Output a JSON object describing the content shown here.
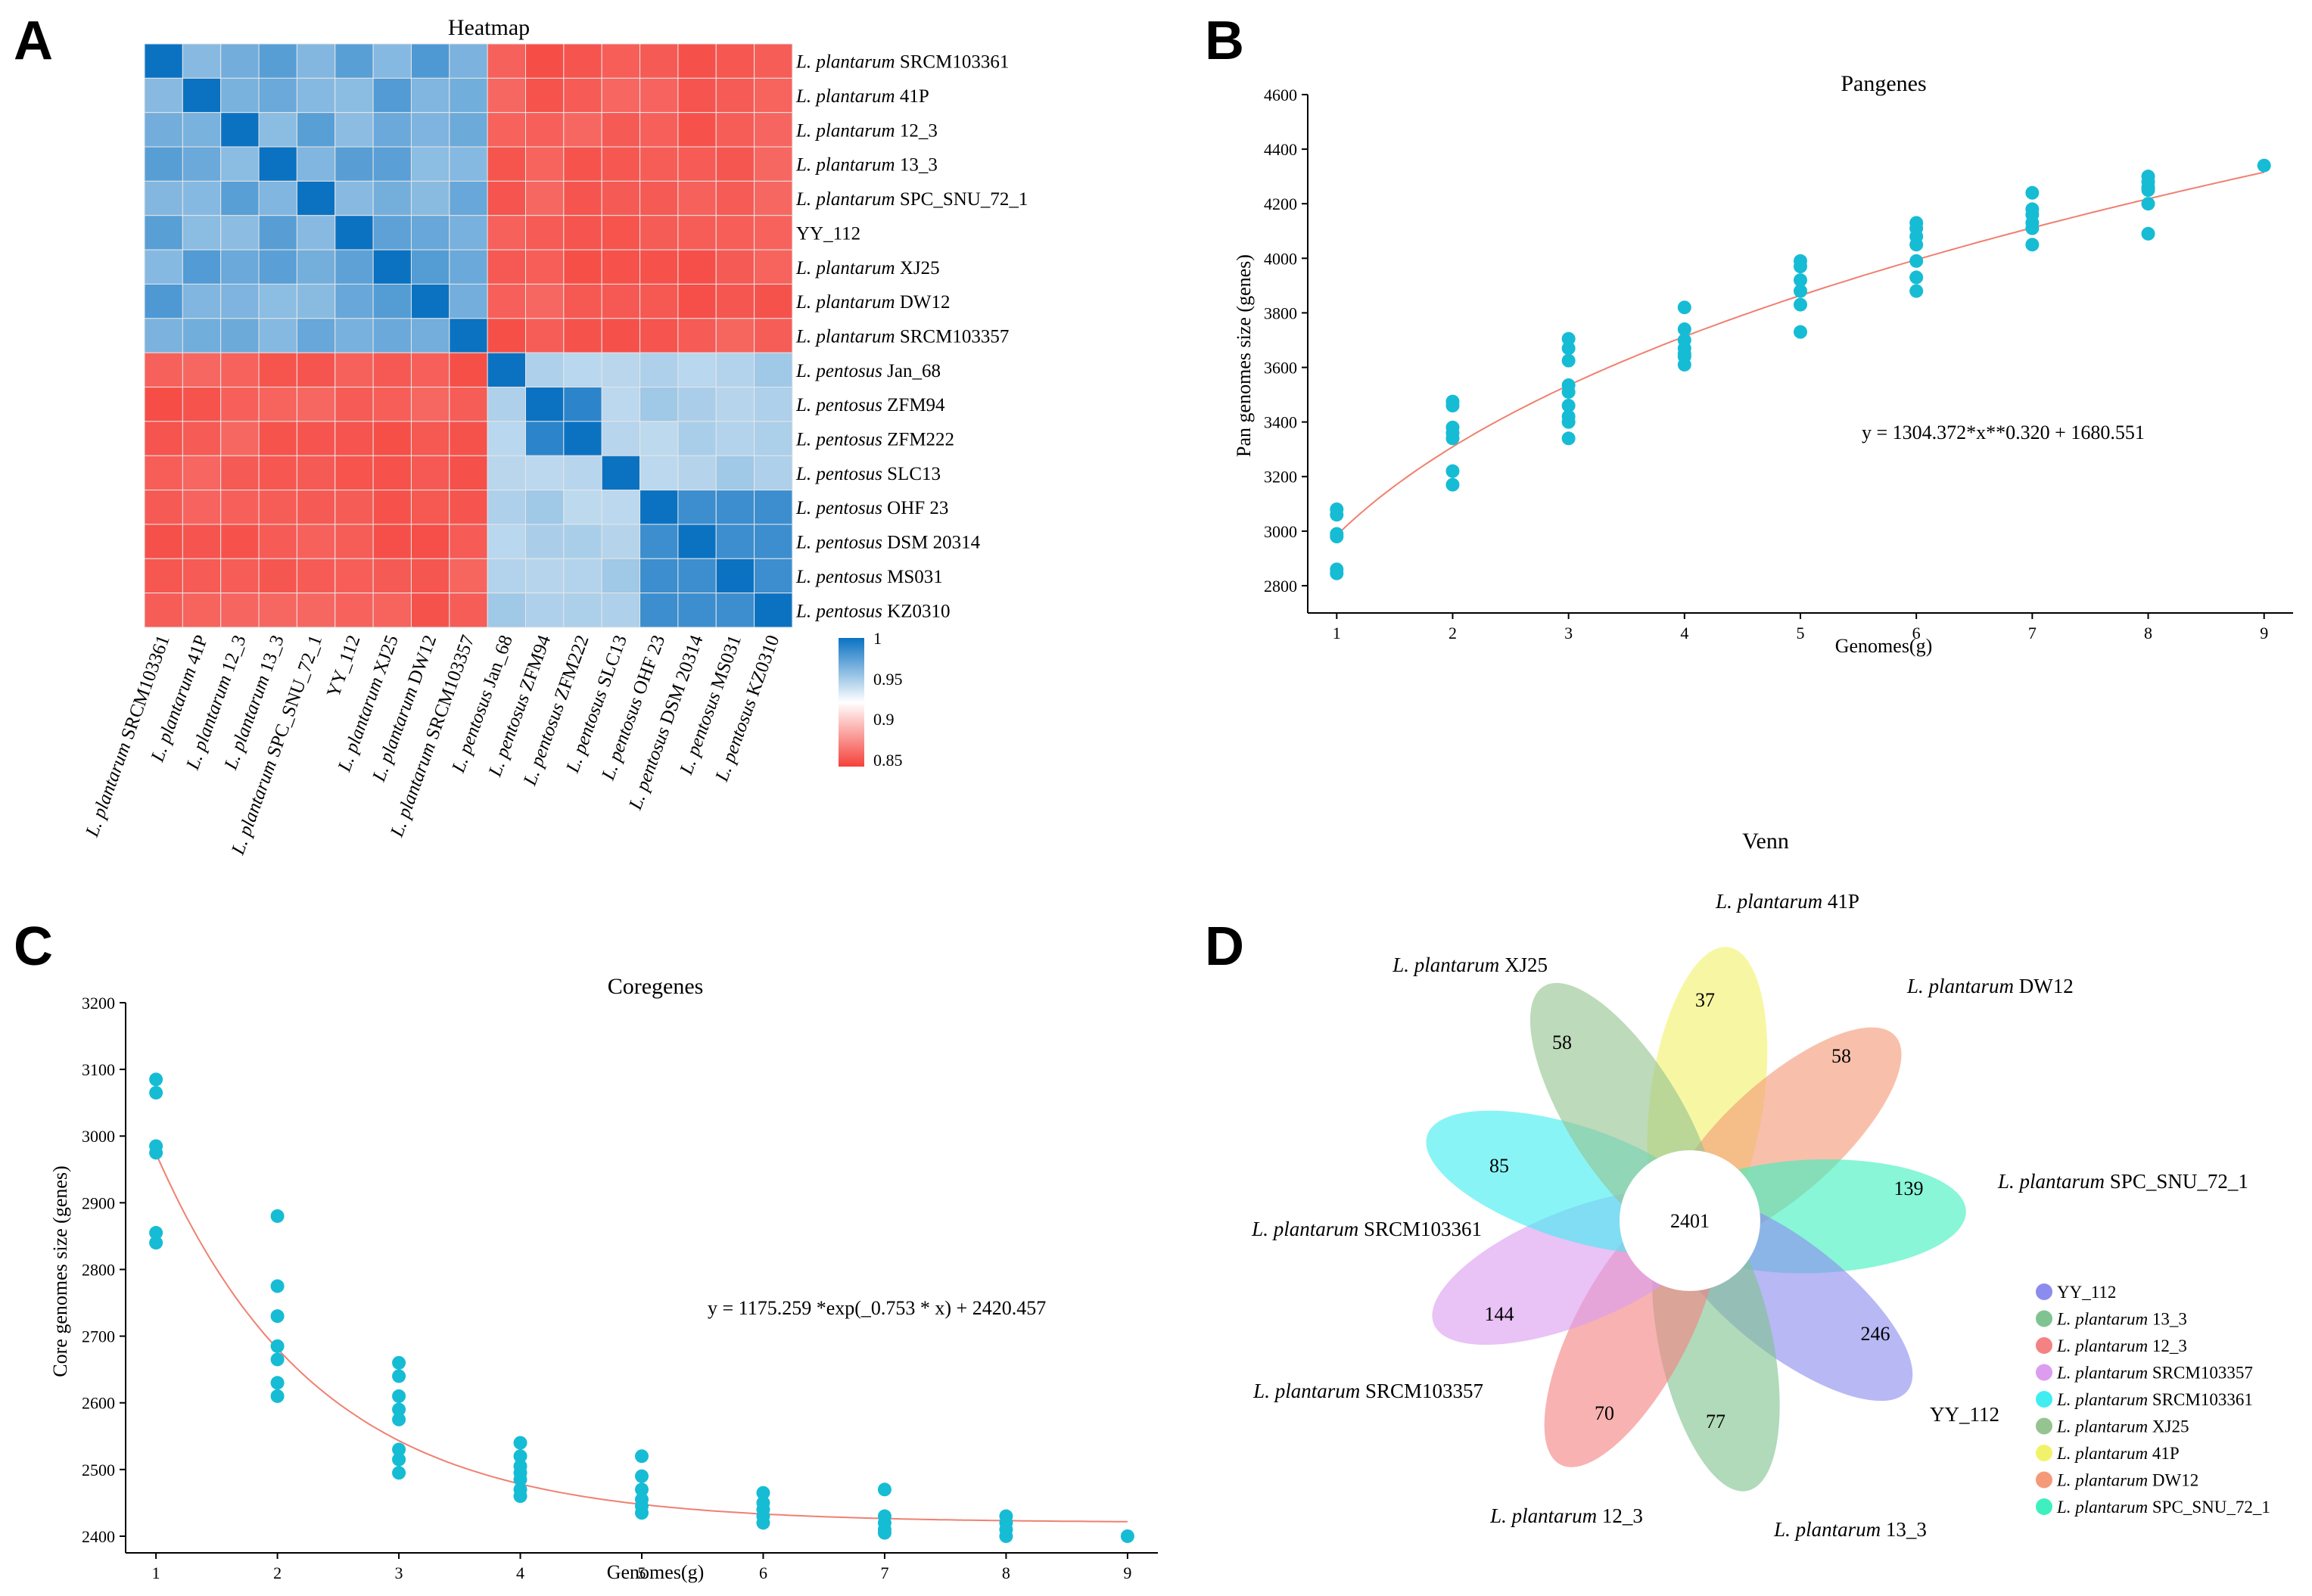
{
  "panel_labels": [
    "A",
    "B",
    "C",
    "D"
  ],
  "chart_data": [
    {
      "panel": "A",
      "type": "heatmap",
      "title": "Heatmap",
      "row_labels": [
        {
          "genus": "L. plantarum",
          "strain": "SRCM103361"
        },
        {
          "genus": "L. plantarum",
          "strain": "41P"
        },
        {
          "genus": "L. plantarum",
          "strain": "12_3"
        },
        {
          "genus": "L. plantarum",
          "strain": "13_3"
        },
        {
          "genus": "L. plantarum",
          "strain": "SPC_SNU_72_1"
        },
        {
          "genus": "",
          "strain": "YY_112"
        },
        {
          "genus": "L. plantarum",
          "strain": "XJ25"
        },
        {
          "genus": "L. plantarum",
          "strain": "DW12"
        },
        {
          "genus": "L. plantarum",
          "strain": "SRCM103357"
        },
        {
          "genus": "L. pentosus",
          "strain": "Jan_68"
        },
        {
          "genus": "L. pentosus",
          "strain": "ZFM94"
        },
        {
          "genus": "L. pentosus",
          "strain": "ZFM222"
        },
        {
          "genus": "L. pentosus",
          "strain": "SLC13"
        },
        {
          "genus": "L. pentosus",
          "strain": "OHF 23"
        },
        {
          "genus": "L. pentosus",
          "strain": "DSM 20314"
        },
        {
          "genus": "L. pentosus",
          "strain": "MS031"
        },
        {
          "genus": "L. pentosus",
          "strain": "KZ0310"
        }
      ],
      "col_labels": [
        {
          "genus": "L. plantarum",
          "strain": "SRCM103361"
        },
        {
          "genus": "L. plantarum",
          "strain": "41P"
        },
        {
          "genus": "L. plantarum",
          "strain": "12_3"
        },
        {
          "genus": "L. plantarum",
          "strain": "13_3"
        },
        {
          "genus": "L. plantarum",
          "strain": " SPC_SNU_72_1"
        },
        {
          "genus": "",
          "strain": "YY_112"
        },
        {
          "genus": "L. plantarum",
          "strain": "XJ25"
        },
        {
          "genus": "L. plantarum",
          "strain": "DW12"
        },
        {
          "genus": "L. plantarum",
          "strain": "SRCM103357"
        },
        {
          "genus": "L. pentosus",
          "strain": "Jan_68"
        },
        {
          "genus": "L. pentosus",
          "strain": "ZFM94"
        },
        {
          "genus": "L. pentosus",
          "strain": "ZFM222"
        },
        {
          "genus": "L. pentosus",
          "strain": "SLC13"
        },
        {
          "genus": "L. pentosus",
          "strain": "OHF 23"
        },
        {
          "genus": "L. pentosus",
          "strain": "DSM 20314"
        },
        {
          "genus": "L. pentosus",
          "strain": "MS031"
        },
        {
          "genus": "L. pentosus",
          "strain": "KZ0310"
        }
      ],
      "group_split": 9,
      "within_plantarum": 0.97,
      "within_pentosus": 0.95,
      "between_groups": 0.85,
      "diagonal": 1.0,
      "colorbar": {
        "ticks": [
          "1",
          "0.95",
          "0.9",
          "0.85"
        ],
        "range": [
          0.85,
          1.0
        ],
        "high_color": "#0b72c2",
        "mid_color": "#ffffff",
        "low_color": "#f5413a"
      }
    },
    {
      "panel": "B",
      "type": "scatter",
      "title": "Pangenes",
      "xlabel": "Genomes(g)",
      "ylabel": "Pan genomes size (genes)",
      "xlim": [
        0.75,
        9.25
      ],
      "ylim": [
        2700,
        4600
      ],
      "xticks": [
        1,
        2,
        3,
        4,
        5,
        6,
        7,
        8,
        9
      ],
      "yticks": [
        2800,
        3000,
        3200,
        3400,
        3600,
        3800,
        4000,
        4200,
        4400,
        4600
      ],
      "point_color": "#16bcd4",
      "fit_color": "#f08070",
      "equation": "y = 1304.372*x**0.320 + 1680.551",
      "fit": {
        "form": "power",
        "a": 1304.372,
        "b": 0.32,
        "c": 1680.551
      },
      "points": [
        [
          1,
          3080
        ],
        [
          1,
          3060
        ],
        [
          1,
          2990
        ],
        [
          1,
          2980
        ],
        [
          1,
          2860
        ],
        [
          1,
          2845
        ],
        [
          2,
          3475
        ],
        [
          2,
          3460
        ],
        [
          2,
          3380
        ],
        [
          2,
          3360
        ],
        [
          2,
          3340
        ],
        [
          2,
          3220
        ],
        [
          2,
          3170
        ],
        [
          3,
          3705
        ],
        [
          3,
          3670
        ],
        [
          3,
          3625
        ],
        [
          3,
          3535
        ],
        [
          3,
          3510
        ],
        [
          3,
          3460
        ],
        [
          3,
          3420
        ],
        [
          3,
          3400
        ],
        [
          3,
          3340
        ],
        [
          4,
          3820
        ],
        [
          4,
          3740
        ],
        [
          4,
          3700
        ],
        [
          4,
          3670
        ],
        [
          4,
          3650
        ],
        [
          4,
          3640
        ],
        [
          4,
          3610
        ],
        [
          5,
          3990
        ],
        [
          5,
          3970
        ],
        [
          5,
          3920
        ],
        [
          5,
          3880
        ],
        [
          5,
          3830
        ],
        [
          5,
          3730
        ],
        [
          6,
          4130
        ],
        [
          6,
          4110
        ],
        [
          6,
          4080
        ],
        [
          6,
          4050
        ],
        [
          6,
          3990
        ],
        [
          6,
          3930
        ],
        [
          6,
          3880
        ],
        [
          7,
          4240
        ],
        [
          7,
          4180
        ],
        [
          7,
          4160
        ],
        [
          7,
          4130
        ],
        [
          7,
          4110
        ],
        [
          7,
          4050
        ],
        [
          8,
          4300
        ],
        [
          8,
          4280
        ],
        [
          8,
          4260
        ],
        [
          8,
          4250
        ],
        [
          8,
          4200
        ],
        [
          8,
          4090
        ],
        [
          9,
          4340
        ]
      ]
    },
    {
      "panel": "C",
      "type": "scatter",
      "title": "Coregenes",
      "xlabel": "Genomes(g)",
      "ylabel": "Core genomes size (genes)",
      "xlim": [
        0.75,
        9.25
      ],
      "ylim": [
        2375,
        3200
      ],
      "xticks": [
        1,
        2,
        3,
        4,
        5,
        6,
        7,
        8,
        9
      ],
      "yticks": [
        2400,
        2500,
        2600,
        2700,
        2800,
        2900,
        3000,
        3100,
        3200
      ],
      "point_color": "#16bcd4",
      "fit_color": "#f08070",
      "equation": "y = 1175.259 *exp(_0.753 * x) + 2420.457",
      "fit": {
        "form": "exp",
        "a": 1175.259,
        "b": -0.753,
        "c": 2420.457
      },
      "points": [
        [
          1,
          3085
        ],
        [
          1,
          3065
        ],
        [
          1,
          2985
        ],
        [
          1,
          2975
        ],
        [
          1,
          2855
        ],
        [
          1,
          2840
        ],
        [
          2,
          2880
        ],
        [
          2,
          2775
        ],
        [
          2,
          2730
        ],
        [
          2,
          2685
        ],
        [
          2,
          2665
        ],
        [
          2,
          2630
        ],
        [
          2,
          2610
        ],
        [
          3,
          2660
        ],
        [
          3,
          2640
        ],
        [
          3,
          2610
        ],
        [
          3,
          2590
        ],
        [
          3,
          2575
        ],
        [
          3,
          2530
        ],
        [
          3,
          2515
        ],
        [
          3,
          2495
        ],
        [
          4,
          2540
        ],
        [
          4,
          2520
        ],
        [
          4,
          2505
        ],
        [
          4,
          2495
        ],
        [
          4,
          2485
        ],
        [
          4,
          2470
        ],
        [
          4,
          2460
        ],
        [
          5,
          2520
        ],
        [
          5,
          2490
        ],
        [
          5,
          2470
        ],
        [
          5,
          2455
        ],
        [
          5,
          2445
        ],
        [
          5,
          2435
        ],
        [
          6,
          2465
        ],
        [
          6,
          2450
        ],
        [
          6,
          2440
        ],
        [
          6,
          2430
        ],
        [
          6,
          2420
        ],
        [
          7,
          2470
        ],
        [
          7,
          2430
        ],
        [
          7,
          2420
        ],
        [
          7,
          2410
        ],
        [
          7,
          2405
        ],
        [
          8,
          2430
        ],
        [
          8,
          2420
        ],
        [
          8,
          2410
        ],
        [
          8,
          2400
        ],
        [
          9,
          2400
        ]
      ]
    },
    {
      "panel": "D",
      "type": "venn",
      "title": "Venn",
      "core": "2401",
      "petals": [
        {
          "genus": "L. plantarum",
          "strain": "41P",
          "count": "37",
          "color": "#f2f26a"
        },
        {
          "genus": "L. plantarum",
          "strain": "DW12",
          "count": "58",
          "color": "#f49a78"
        },
        {
          "genus": "L. plantarum",
          "strain": "SPC_SNU_72_1",
          "count": "139",
          "color": "#3ff0bf"
        },
        {
          "genus": "",
          "strain": "YY_112",
          "count": "246",
          "color": "#8c8cef"
        },
        {
          "genus": "L. plantarum",
          "strain": "13_3",
          "count": "77",
          "color": "#7fc490"
        },
        {
          "genus": "L. plantarum",
          "strain": "12_3",
          "count": "70",
          "color": "#f48282"
        },
        {
          "genus": "L. plantarum",
          "strain": "SRCM103357",
          "count": "144",
          "color": "#dc9cf0"
        },
        {
          "genus": "L. plantarum",
          "strain": "SRCM103361",
          "count": "85",
          "color": "#41edf0"
        },
        {
          "genus": "L. plantarum",
          "strain": "XJ25",
          "count": "58",
          "color": "#95c490"
        }
      ],
      "legend": [
        {
          "genus": "",
          "strain": "YY_112",
          "color": "#8c8cef"
        },
        {
          "genus": "L. plantarum",
          "strain": "13_3",
          "color": "#7fc490"
        },
        {
          "genus": "L. plantarum",
          "strain": "12_3",
          "color": "#f48282"
        },
        {
          "genus": "L. plantarum",
          "strain": "SRCM103357",
          "color": "#dc9cf0"
        },
        {
          "genus": "L. plantarum",
          "strain": "SRCM103361",
          "color": "#41edf0"
        },
        {
          "genus": "L. plantarum",
          "strain": "XJ25",
          "color": "#95c490"
        },
        {
          "genus": "L. plantarum",
          "strain": "41P",
          "color": "#f2f26a"
        },
        {
          "genus": "L. plantarum",
          "strain": "DW12",
          "color": "#f49a78"
        },
        {
          "genus": "L. plantarum",
          "strain": "SPC_SNU_72_1",
          "color": "#3ff0bf"
        }
      ]
    }
  ]
}
